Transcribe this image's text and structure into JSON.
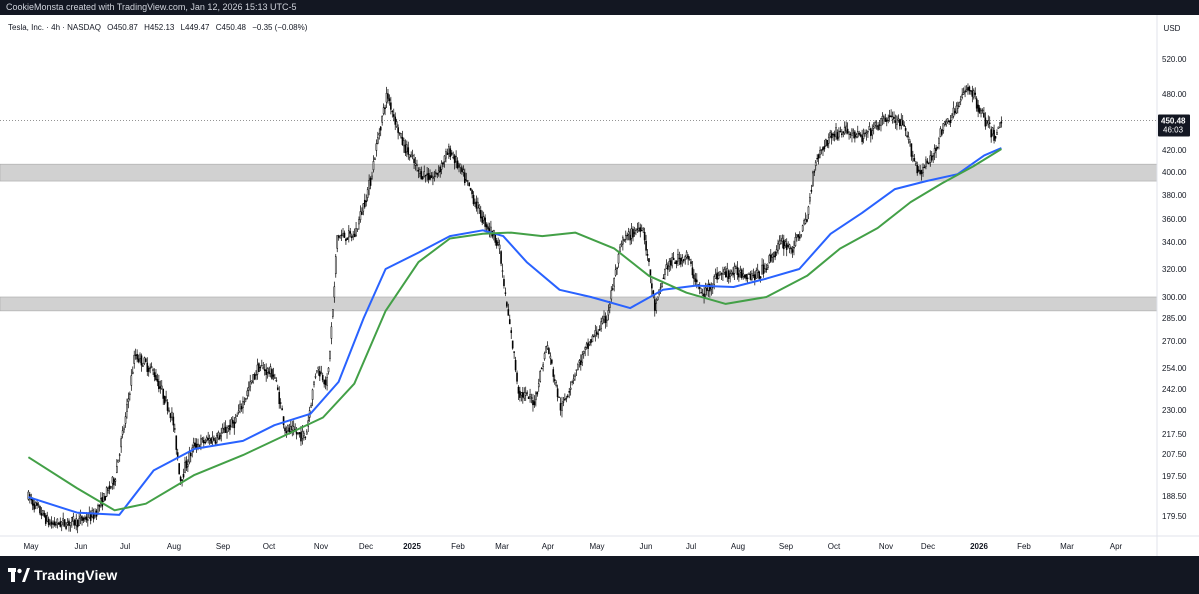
{
  "header": {
    "credit": "CookieMonsta created with TradingView.com, Jan 12, 2026 15:13 UTC-5"
  },
  "legend": {
    "symbol": "Tesla, Inc. · 4h · NASDAQ",
    "open": "O450.87",
    "high": "H452.13",
    "low": "L449.47",
    "close": "C450.48",
    "change": "−0.35 (−0.08%)"
  },
  "footer": {
    "brand": "TradingView",
    "logo_icon": "tradingview-logo-icon"
  },
  "colors": {
    "ma_fast": "#2962ff",
    "ma_slow": "#43a047",
    "candles": "#000000",
    "zones": "#d1d1d1"
  },
  "chart_data": {
    "type": "line",
    "price_scale": {
      "currency": "USD",
      "ticks": [
        520.0,
        480.0,
        450.0,
        420.0,
        400.0,
        380.0,
        360.0,
        340.0,
        320.0,
        300.0,
        285.0,
        270.0,
        254.0,
        242.0,
        230.0,
        217.5,
        207.5,
        197.5,
        188.5,
        179.5
      ],
      "log": true,
      "range": [
        170,
        545
      ]
    },
    "last_price": {
      "value": 450.48,
      "label": "450.48",
      "countdown": "46:03"
    },
    "time_axis": {
      "labels": [
        "May",
        "Jun",
        "Jul",
        "Aug",
        "Sep",
        "Oct",
        "Nov",
        "Dec",
        "2025",
        "Feb",
        "Mar",
        "Apr",
        "May",
        "Jun",
        "Jul",
        "Aug",
        "Sep",
        "Oct",
        "Nov",
        "Dec",
        "2026",
        "Feb",
        "Mar",
        "Apr"
      ],
      "bold": [
        "2025",
        "2026"
      ]
    },
    "zones": [
      {
        "low": 392,
        "high": 407
      },
      {
        "low": 290,
        "high": 300
      }
    ],
    "price_path": [
      [
        "2024-05-01",
        188
      ],
      [
        "2024-05-15",
        176
      ],
      [
        "2024-06-01",
        177
      ],
      [
        "2024-06-12",
        180
      ],
      [
        "2024-06-25",
        196
      ],
      [
        "2024-07-02",
        225
      ],
      [
        "2024-07-08",
        262
      ],
      [
        "2024-07-20",
        252
      ],
      [
        "2024-08-01",
        226
      ],
      [
        "2024-08-06",
        196
      ],
      [
        "2024-08-15",
        212
      ],
      [
        "2024-08-30",
        216
      ],
      [
        "2024-09-10",
        224
      ],
      [
        "2024-09-25",
        255
      ],
      [
        "2024-10-05",
        250
      ],
      [
        "2024-10-12",
        220
      ],
      [
        "2024-10-25",
        216
      ],
      [
        "2024-11-01",
        255
      ],
      [
        "2024-11-08",
        245
      ],
      [
        "2024-11-12",
        300
      ],
      [
        "2024-11-14",
        345
      ],
      [
        "2024-11-25",
        345
      ],
      [
        "2024-12-05",
        390
      ],
      [
        "2024-12-16",
        480
      ],
      [
        "2024-12-25",
        430
      ],
      [
        "2025-01-05",
        400
      ],
      [
        "2025-01-15",
        395
      ],
      [
        "2025-01-25",
        420
      ],
      [
        "2025-02-05",
        390
      ],
      [
        "2025-02-15",
        360
      ],
      [
        "2025-02-25",
        340
      ],
      [
        "2025-03-02",
        295
      ],
      [
        "2025-03-10",
        240
      ],
      [
        "2025-03-20",
        235
      ],
      [
        "2025-03-28",
        268
      ],
      [
        "2025-04-06",
        230
      ],
      [
        "2025-04-15",
        252
      ],
      [
        "2025-04-25",
        270
      ],
      [
        "2025-05-05",
        285
      ],
      [
        "2025-05-15",
        340
      ],
      [
        "2025-05-28",
        355
      ],
      [
        "2025-06-05",
        290
      ],
      [
        "2025-06-12",
        322
      ],
      [
        "2025-06-25",
        330
      ],
      [
        "2025-07-05",
        300
      ],
      [
        "2025-07-15",
        316
      ],
      [
        "2025-07-28",
        318
      ],
      [
        "2025-08-10",
        315
      ],
      [
        "2025-08-25",
        340
      ],
      [
        "2025-09-01",
        335
      ],
      [
        "2025-09-10",
        360
      ],
      [
        "2025-09-15",
        410
      ],
      [
        "2025-09-25",
        435
      ],
      [
        "2025-10-05",
        440
      ],
      [
        "2025-10-15",
        432
      ],
      [
        "2025-10-25",
        445
      ],
      [
        "2025-11-01",
        455
      ],
      [
        "2025-11-10",
        445
      ],
      [
        "2025-11-20",
        400
      ],
      [
        "2025-11-28",
        410
      ],
      [
        "2025-12-05",
        440
      ],
      [
        "2025-12-15",
        465
      ],
      [
        "2025-12-22",
        490
      ],
      [
        "2025-12-30",
        460
      ],
      [
        "2026-01-05",
        440
      ],
      [
        "2026-01-08",
        433
      ],
      [
        "2026-01-12",
        450
      ]
    ],
    "series": [
      {
        "name": "",
        "color": "#2962ff",
        "points": [
          [
            "2024-05-01",
            188
          ],
          [
            "2024-06-01",
            181
          ],
          [
            "2024-06-28",
            180
          ],
          [
            "2024-07-20",
            200
          ],
          [
            "2024-08-15",
            210
          ],
          [
            "2024-09-15",
            214
          ],
          [
            "2024-10-05",
            222
          ],
          [
            "2024-10-28",
            228
          ],
          [
            "2024-11-15",
            246
          ],
          [
            "2024-12-01",
            285
          ],
          [
            "2024-12-15",
            320
          ],
          [
            "2025-01-05",
            332
          ],
          [
            "2025-01-25",
            345
          ],
          [
            "2025-02-15",
            350
          ],
          [
            "2025-02-28",
            345
          ],
          [
            "2025-03-15",
            325
          ],
          [
            "2025-04-05",
            305
          ],
          [
            "2025-04-25",
            300
          ],
          [
            "2025-05-20",
            292
          ],
          [
            "2025-06-10",
            305
          ],
          [
            "2025-07-01",
            308
          ],
          [
            "2025-07-25",
            307
          ],
          [
            "2025-08-15",
            313
          ],
          [
            "2025-09-05",
            320
          ],
          [
            "2025-09-25",
            347
          ],
          [
            "2025-10-15",
            365
          ],
          [
            "2025-11-05",
            385
          ],
          [
            "2025-11-25",
            392
          ],
          [
            "2025-12-15",
            398
          ],
          [
            "2026-01-01",
            415
          ],
          [
            "2026-01-12",
            422
          ]
        ]
      },
      {
        "name": "",
        "color": "#43a047",
        "points": [
          [
            "2024-05-01",
            206
          ],
          [
            "2024-06-01",
            192
          ],
          [
            "2024-06-25",
            182
          ],
          [
            "2024-07-15",
            185
          ],
          [
            "2024-08-15",
            198
          ],
          [
            "2024-09-15",
            207
          ],
          [
            "2024-10-15",
            218
          ],
          [
            "2024-11-05",
            226
          ],
          [
            "2024-11-25",
            245
          ],
          [
            "2024-12-15",
            290
          ],
          [
            "2025-01-05",
            325
          ],
          [
            "2025-01-25",
            343
          ],
          [
            "2025-02-15",
            347
          ],
          [
            "2025-03-05",
            348
          ],
          [
            "2025-03-25",
            345
          ],
          [
            "2025-04-15",
            348
          ],
          [
            "2025-05-10",
            335
          ],
          [
            "2025-06-01",
            315
          ],
          [
            "2025-06-25",
            303
          ],
          [
            "2025-07-20",
            295
          ],
          [
            "2025-08-15",
            300
          ],
          [
            "2025-09-10",
            315
          ],
          [
            "2025-10-01",
            335
          ],
          [
            "2025-10-25",
            352
          ],
          [
            "2025-11-15",
            374
          ],
          [
            "2025-12-05",
            390
          ],
          [
            "2025-12-25",
            405
          ],
          [
            "2026-01-12",
            421
          ]
        ]
      }
    ]
  }
}
